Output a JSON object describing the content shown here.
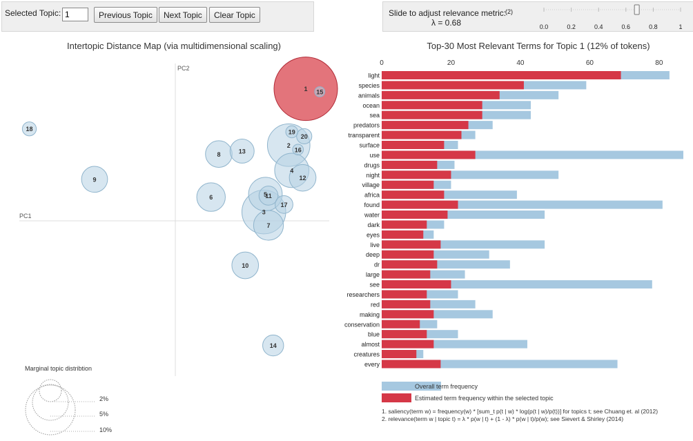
{
  "controls": {
    "selected_topic_label": "Selected Topic:",
    "selected_topic_value": "1",
    "previous_label": "Previous Topic",
    "next_label": "Next Topic",
    "clear_label": "Clear Topic",
    "slider_label": "Slide to adjust relevance metric:",
    "slider_footnote": "(2)",
    "lambda_text": "λ = 0.68",
    "lambda_value": 0.68,
    "slider_ticks": [
      "0.0",
      "0.2",
      "0.4",
      "0.6",
      "0.8",
      "1"
    ]
  },
  "colors": {
    "overall": "#a6c8e0",
    "estimated": "#d53847",
    "bubble_fill": "#b7d2e3",
    "bubble_stroke": "#8fb4cc",
    "selected_fill": "#d9454f",
    "selected_stroke": "#b02a36"
  },
  "chart_data": [
    {
      "type": "scatter",
      "title": "Intertopic Distance Map (via multidimensional scaling)",
      "xlabel": "PC1",
      "ylabel": "PC2",
      "selected_topic": "1",
      "topics": [
        {
          "label": "1",
          "pc1": 0.84,
          "pc2": 0.89,
          "size": 1.0
        },
        {
          "label": "2",
          "pc1": 0.73,
          "pc2": 0.51,
          "size": 0.67
        },
        {
          "label": "3",
          "pc1": 0.57,
          "pc2": 0.06,
          "size": 0.69
        },
        {
          "label": "4",
          "pc1": 0.75,
          "pc2": 0.34,
          "size": 0.54
        },
        {
          "label": "5",
          "pc1": 0.58,
          "pc2": 0.18,
          "size": 0.53
        },
        {
          "label": "6",
          "pc1": 0.23,
          "pc2": 0.16,
          "size": 0.45
        },
        {
          "label": "7",
          "pc1": 0.6,
          "pc2": -0.03,
          "size": 0.47
        },
        {
          "label": "8",
          "pc1": 0.28,
          "pc2": 0.45,
          "size": 0.42
        },
        {
          "label": "9",
          "pc1": -0.52,
          "pc2": 0.28,
          "size": 0.41
        },
        {
          "label": "10",
          "pc1": 0.45,
          "pc2": -0.3,
          "size": 0.42
        },
        {
          "label": "11",
          "pc1": 0.6,
          "pc2": 0.17,
          "size": 0.3
        },
        {
          "label": "12",
          "pc1": 0.82,
          "pc2": 0.29,
          "size": 0.42
        },
        {
          "label": "13",
          "pc1": 0.43,
          "pc2": 0.47,
          "size": 0.38
        },
        {
          "label": "14",
          "pc1": 0.63,
          "pc2": -0.84,
          "size": 0.33
        },
        {
          "label": "15",
          "pc1": 0.93,
          "pc2": 0.87,
          "size": 0.16
        },
        {
          "label": "16",
          "pc1": 0.79,
          "pc2": 0.48,
          "size": 0.17
        },
        {
          "label": "17",
          "pc1": 0.7,
          "pc2": 0.11,
          "size": 0.28
        },
        {
          "label": "18",
          "pc1": -0.94,
          "pc2": 0.62,
          "size": 0.22
        },
        {
          "label": "19",
          "pc1": 0.75,
          "pc2": 0.6,
          "size": 0.19
        },
        {
          "label": "20",
          "pc1": 0.83,
          "pc2": 0.57,
          "size": 0.24
        }
      ],
      "legend": {
        "title": "Marginal topic distribtion",
        "entries": [
          "2%",
          "5%",
          "10%"
        ]
      }
    },
    {
      "type": "bar",
      "title": "Top-30 Most Relevant Terms for Topic 1 (12% of tokens)",
      "xlim": [
        0,
        87
      ],
      "x_ticks": [
        0,
        20,
        40,
        60,
        80
      ],
      "categories": [
        "light",
        "species",
        "animals",
        "ocean",
        "sea",
        "predators",
        "transparent",
        "surface",
        "use",
        "drugs",
        "night",
        "village",
        "africa",
        "found",
        "water",
        "dark",
        "eyes",
        "live",
        "deep",
        "dr",
        "large",
        "see",
        "researchers",
        "red",
        "making",
        "conservation",
        "blue",
        "almost",
        "creatures",
        "every"
      ],
      "series": [
        {
          "name": "Overall term frequency",
          "values": [
            83,
            59,
            51,
            43,
            43,
            32,
            27,
            22,
            87,
            21,
            51,
            20,
            39,
            81,
            47,
            18,
            15,
            47,
            31,
            37,
            24,
            78,
            22,
            27,
            32,
            16,
            22,
            42,
            12,
            68
          ]
        },
        {
          "name": "Estimated term frequency within the selected topic",
          "values": [
            69,
            41,
            34,
            29,
            29,
            25,
            23,
            18,
            27,
            16,
            20,
            15,
            18,
            22,
            19,
            13,
            12,
            17,
            15,
            16,
            14,
            20,
            13,
            14,
            15,
            11,
            13,
            15,
            10,
            17
          ]
        }
      ],
      "footnotes": [
        "1. saliency(term w) = frequency(w) * [sum_t p(t | w) * log(p(t | w)/p(t))] for topics t; see Chuang et. al (2012)",
        "2. relevance(term w | topic t) = λ * p(w | t) + (1 - λ) * p(w | t)/p(w); see Sievert & Shirley (2014)"
      ]
    }
  ]
}
